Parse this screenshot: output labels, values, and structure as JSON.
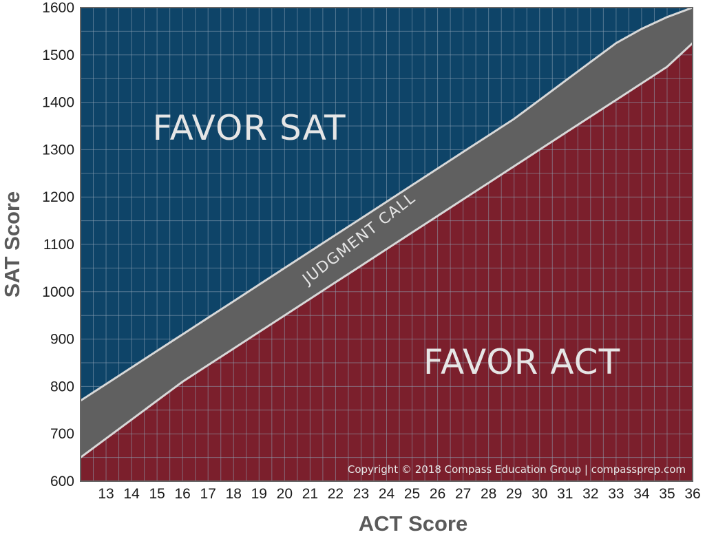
{
  "chart_data": {
    "type": "area",
    "xlabel": "ACT Score",
    "ylabel": "SAT Score",
    "xlim": [
      12,
      36
    ],
    "ylim": [
      600,
      1600
    ],
    "x_ticks": [
      13,
      14,
      15,
      16,
      17,
      18,
      19,
      20,
      21,
      22,
      23,
      24,
      25,
      26,
      27,
      28,
      29,
      30,
      31,
      32,
      33,
      34,
      35,
      36
    ],
    "y_ticks": [
      600,
      700,
      800,
      900,
      1000,
      1100,
      1200,
      1300,
      1400,
      1500,
      1600
    ],
    "grid": true,
    "series": [
      {
        "name": "JUDGMENT CALL",
        "x": [
          12,
          13,
          14,
          15,
          16,
          17,
          18,
          19,
          20,
          21,
          22,
          23,
          24,
          25,
          26,
          27,
          28,
          29,
          30,
          31,
          32,
          33,
          34,
          35,
          36
        ],
        "upper": [
          770,
          805,
          840,
          875,
          910,
          945,
          980,
          1015,
          1050,
          1085,
          1120,
          1155,
          1190,
          1225,
          1260,
          1295,
          1330,
          1365,
          1405,
          1445,
          1485,
          1525,
          1555,
          1580,
          1600
        ],
        "lower": [
          650,
          690,
          730,
          770,
          810,
          845,
          880,
          915,
          950,
          985,
          1020,
          1055,
          1090,
          1125,
          1160,
          1195,
          1230,
          1265,
          1300,
          1335,
          1370,
          1405,
          1440,
          1475,
          1525
        ]
      }
    ],
    "annotations": [
      "FAVOR SAT",
      "FAVOR ACT",
      "JUDGMENT CALL"
    ],
    "colors": {
      "sat_region": "#0e4468",
      "act_region": "#7b1f2c",
      "band": "#606060",
      "band_edge": "#d8d8d8",
      "grid": "#8fa4b6"
    }
  },
  "labels": {
    "favor_sat": "FAVOR SAT",
    "favor_act": "FAVOR ACT",
    "judgment_call": "JUDGMENT CALL",
    "copyright": "Copyright © 2018 Compass Education Group | compassprep.com",
    "xlabel": "ACT Score",
    "ylabel": "SAT Score"
  }
}
